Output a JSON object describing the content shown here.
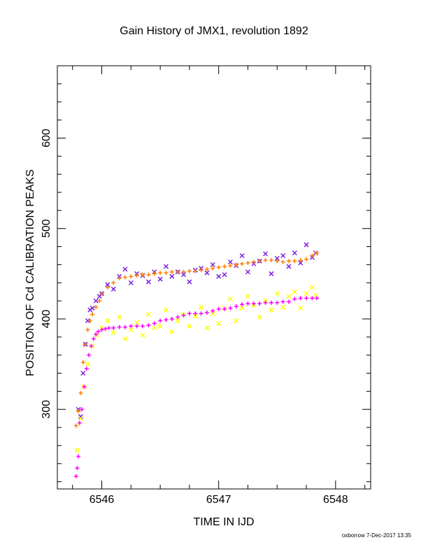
{
  "page": {
    "title": "Gain History of JMX1, revolution 1892",
    "footer": "oxborrow 7-Dec-2017 13:35"
  },
  "chart_data": {
    "type": "scatter",
    "title": "Gain History of JMX1, revolution 1892",
    "xlabel": "TIME IN IJD",
    "ylabel": "POSITION OF Cd CALIBRATION PEAKS",
    "xlim": [
      6545.62,
      6548.3
    ],
    "ylim": [
      212,
      680
    ],
    "x_ticks": [
      6546,
      6547,
      6548
    ],
    "y_ticks": [
      300,
      400,
      500,
      600
    ],
    "grid": false,
    "legend": "none",
    "series": [
      {
        "color": "#7b22e0",
        "marker": "x",
        "x": [
          6545.8,
          6545.82,
          6545.84,
          6545.86,
          6545.88,
          6545.9,
          6545.92,
          6545.95,
          6545.98,
          6546.0,
          6546.05,
          6546.1,
          6546.15,
          6546.2,
          6546.25,
          6546.3,
          6546.35,
          6546.4,
          6546.45,
          6546.5,
          6546.55,
          6546.6,
          6546.65,
          6546.7,
          6546.75,
          6546.8,
          6546.85,
          6546.9,
          6546.95,
          6547.0,
          6547.05,
          6547.1,
          6547.15,
          6547.2,
          6547.25,
          6547.3,
          6547.35,
          6547.4,
          6547.45,
          6547.5,
          6547.55,
          6547.6,
          6547.65,
          6547.7,
          6547.75,
          6547.8,
          6547.83
        ],
        "y": [
          300,
          292,
          340,
          372,
          398,
          410,
          412,
          420,
          425,
          428,
          438,
          433,
          447,
          455,
          440,
          450,
          448,
          441,
          452,
          444,
          458,
          447,
          452,
          449,
          441,
          454,
          456,
          451,
          460,
          447,
          449,
          463,
          459,
          470,
          452,
          461,
          464,
          472,
          450,
          467,
          470,
          458,
          473,
          462,
          482,
          468,
          473
        ]
      },
      {
        "color": "#ff7f00",
        "marker": "+",
        "x": [
          6545.78,
          6545.8,
          6545.82,
          6545.84,
          6545.86,
          6545.88,
          6545.9,
          6545.92,
          6545.95,
          6545.98,
          6546.0,
          6546.05,
          6546.1,
          6546.15,
          6546.2,
          6546.25,
          6546.3,
          6546.35,
          6546.4,
          6546.45,
          6546.5,
          6546.55,
          6546.6,
          6546.65,
          6546.7,
          6546.75,
          6546.8,
          6546.85,
          6546.9,
          6546.95,
          6547.0,
          6547.05,
          6547.1,
          6547.15,
          6547.2,
          6547.25,
          6547.3,
          6547.35,
          6547.4,
          6547.45,
          6547.5,
          6547.55,
          6547.6,
          6547.65,
          6547.7,
          6547.75,
          6547.8,
          6547.84
        ],
        "y": [
          282,
          298,
          318,
          352,
          372,
          388,
          398,
          405,
          413,
          420,
          428,
          435,
          440,
          445,
          446,
          447,
          448,
          449,
          449,
          450,
          451,
          451,
          452,
          452,
          452,
          453,
          453,
          454,
          455,
          456,
          457,
          458,
          459,
          460,
          461,
          462,
          463,
          464,
          465,
          465,
          464,
          463,
          464,
          464,
          465,
          466,
          470,
          473
        ]
      },
      {
        "color": "#ffff00",
        "marker": "x",
        "x": [
          6545.79,
          6545.82,
          6545.85,
          6545.88,
          6545.92,
          6545.96,
          6546.0,
          6546.05,
          6546.1,
          6546.15,
          6546.2,
          6546.25,
          6546.3,
          6546.35,
          6546.4,
          6546.45,
          6546.5,
          6546.55,
          6546.6,
          6546.65,
          6546.7,
          6546.75,
          6546.8,
          6546.85,
          6546.9,
          6546.95,
          6547.0,
          6547.05,
          6547.1,
          6547.15,
          6547.2,
          6547.25,
          6547.3,
          6547.35,
          6547.4,
          6547.45,
          6547.5,
          6547.55,
          6547.6,
          6547.65,
          6547.7,
          6547.75,
          6547.8,
          6547.83
        ],
        "y": [
          255,
          290,
          325,
          350,
          370,
          382,
          390,
          398,
          385,
          402,
          378,
          388,
          396,
          382,
          405,
          390,
          392,
          410,
          386,
          398,
          405,
          392,
          403,
          413,
          390,
          406,
          395,
          412,
          422,
          398,
          412,
          425,
          415,
          402,
          420,
          410,
          428,
          413,
          425,
          430,
          412,
          428,
          435,
          426
        ]
      },
      {
        "color": "#ff00ff",
        "marker": "+",
        "x": [
          6545.78,
          6545.79,
          6545.8,
          6545.81,
          6545.83,
          6545.85,
          6545.87,
          6545.89,
          6545.91,
          6545.93,
          6545.95,
          6545.97,
          6546.0,
          6546.03,
          6546.06,
          6546.1,
          6546.15,
          6546.2,
          6546.25,
          6546.3,
          6546.35,
          6546.4,
          6546.45,
          6546.5,
          6546.55,
          6546.6,
          6546.65,
          6546.7,
          6546.75,
          6546.8,
          6546.85,
          6546.9,
          6546.95,
          6547.0,
          6547.05,
          6547.1,
          6547.15,
          6547.2,
          6547.25,
          6547.3,
          6547.35,
          6547.4,
          6547.45,
          6547.5,
          6547.55,
          6547.6,
          6547.65,
          6547.7,
          6547.75,
          6547.8,
          6547.84
        ],
        "y": [
          226,
          235,
          248,
          285,
          300,
          325,
          345,
          360,
          370,
          378,
          383,
          386,
          388,
          389,
          390,
          390,
          391,
          391,
          392,
          392,
          392,
          393,
          395,
          398,
          399,
          400,
          402,
          404,
          406,
          406,
          406,
          407,
          409,
          411,
          411,
          412,
          414,
          416,
          417,
          417,
          417,
          418,
          418,
          418,
          419,
          419,
          422,
          423,
          423,
          423,
          423
        ]
      }
    ]
  }
}
